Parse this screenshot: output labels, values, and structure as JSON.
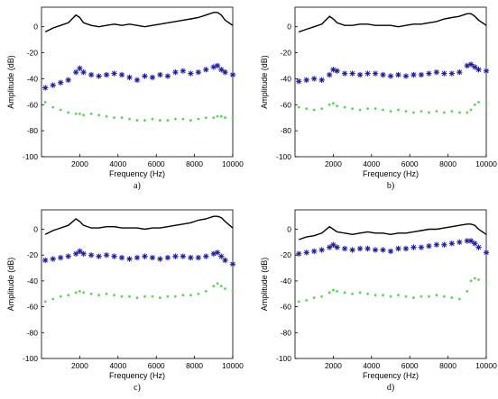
{
  "chart_data": [
    {
      "type": "line",
      "panel_label": "a)",
      "xlabel": "Frequency (Hz)",
      "ylabel": "Amplitude (dB)",
      "xlim": [
        0,
        10000
      ],
      "ylim": [
        -100,
        15
      ],
      "xticks": [
        2000,
        4000,
        6000,
        8000,
        10000
      ],
      "yticks": [
        0,
        -20,
        -40,
        -60,
        -80,
        -100
      ],
      "series": [
        {
          "style": "line",
          "color": "#000000",
          "x": [
            200,
            600,
            1000,
            1400,
            1800,
            2000,
            2200,
            2600,
            3000,
            3400,
            3800,
            4200,
            4600,
            5000,
            5400,
            5800,
            6200,
            6600,
            7000,
            7400,
            7800,
            8200,
            8600,
            9000,
            9200,
            9400,
            9600,
            10000
          ],
          "y": [
            -4,
            -1,
            1,
            3,
            9,
            7,
            3,
            1,
            0,
            1,
            2,
            1,
            2,
            1,
            0,
            1,
            2,
            3,
            4,
            5,
            6,
            7,
            9,
            11,
            11,
            9,
            5,
            1
          ]
        },
        {
          "style": "stars",
          "color": "#1a1a99",
          "x": [
            200,
            600,
            1000,
            1400,
            1800,
            2000,
            2200,
            2600,
            3000,
            3400,
            3800,
            4200,
            4600,
            5000,
            5400,
            5800,
            6200,
            6600,
            7000,
            7400,
            7800,
            8200,
            8600,
            9000,
            9200,
            9400,
            9600,
            10000
          ],
          "y": [
            -47,
            -45,
            -43,
            -41,
            -35,
            -32,
            -35,
            -37,
            -38,
            -37,
            -36,
            -37,
            -39,
            -41,
            -38,
            -39,
            -37,
            -38,
            -35,
            -34,
            -36,
            -35,
            -33,
            -31,
            -30,
            -33,
            -35,
            -37
          ]
        },
        {
          "style": "dots",
          "color": "#55d655",
          "x": [
            200,
            600,
            1000,
            1400,
            1800,
            2000,
            2200,
            2600,
            3000,
            3400,
            3800,
            4200,
            4600,
            5000,
            5400,
            5800,
            6200,
            6600,
            7000,
            7400,
            7800,
            8200,
            8600,
            9000,
            9200,
            9400,
            9600,
            10000
          ],
          "y": [
            -58,
            -62,
            -64,
            -66,
            -67,
            -67,
            -68,
            -67,
            -68,
            -69,
            -70,
            -70,
            -71,
            -72,
            -72,
            -71,
            -72,
            -72,
            -71,
            -71,
            -72,
            -71,
            -70,
            -70,
            -69,
            -69,
            -70,
            -70
          ]
        }
      ]
    },
    {
      "type": "line",
      "panel_label": "b)",
      "xlabel": "Frequency (Hz)",
      "ylabel": "Amplitude (dB)",
      "xlim": [
        0,
        10000
      ],
      "ylim": [
        -100,
        15
      ],
      "xticks": [
        2000,
        4000,
        6000,
        8000,
        10000
      ],
      "yticks": [
        0,
        -20,
        -40,
        -60,
        -80,
        -100
      ],
      "series": [
        {
          "style": "line",
          "color": "#000000",
          "x": [
            200,
            600,
            1000,
            1400,
            1800,
            2000,
            2200,
            2600,
            3000,
            3400,
            3800,
            4200,
            4600,
            5000,
            5400,
            5800,
            6200,
            6600,
            7000,
            7400,
            7800,
            8200,
            8600,
            9000,
            9200,
            9400,
            9600,
            10000
          ],
          "y": [
            -4,
            -2,
            0,
            2,
            8,
            6,
            3,
            1,
            1,
            2,
            2,
            1,
            1,
            1,
            0,
            1,
            2,
            2,
            3,
            4,
            6,
            7,
            8,
            10,
            10,
            8,
            5,
            1
          ]
        },
        {
          "style": "stars",
          "color": "#1a1a99",
          "x": [
            200,
            600,
            1000,
            1400,
            1800,
            2000,
            2200,
            2600,
            3000,
            3400,
            3800,
            4200,
            4600,
            5000,
            5400,
            5800,
            6200,
            6600,
            7000,
            7400,
            7800,
            8200,
            8600,
            9000,
            9200,
            9400,
            9600,
            10000
          ],
          "y": [
            -42,
            -41,
            -40,
            -41,
            -37,
            -33,
            -34,
            -36,
            -36,
            -37,
            -36,
            -36,
            -37,
            -38,
            -37,
            -38,
            -37,
            -37,
            -36,
            -35,
            -36,
            -36,
            -35,
            -30,
            -29,
            -31,
            -33,
            -34
          ]
        },
        {
          "style": "dots",
          "color": "#55d655",
          "x": [
            200,
            600,
            1000,
            1400,
            1800,
            2000,
            2200,
            2600,
            3000,
            3400,
            3800,
            4200,
            4600,
            5000,
            5400,
            5800,
            6200,
            6600,
            7000,
            7400,
            7800,
            8200,
            8600,
            9000,
            9200,
            9400,
            9600,
            10000
          ],
          "y": [
            -62,
            -63,
            -64,
            -63,
            -60,
            -59,
            -61,
            -62,
            -63,
            -64,
            -63,
            -63,
            -64,
            -65,
            -64,
            -65,
            -66,
            -65,
            -66,
            -65,
            -66,
            -65,
            -66,
            -66,
            -64,
            -60,
            -58,
            -59
          ]
        }
      ]
    },
    {
      "type": "line",
      "panel_label": "c)",
      "xlabel": "Frequency (Hz)",
      "ylabel": "Amplitude (dB)",
      "xlim": [
        0,
        10000
      ],
      "ylim": [
        -100,
        15
      ],
      "xticks": [
        2000,
        4000,
        6000,
        8000,
        10000
      ],
      "yticks": [
        0,
        -20,
        -40,
        -60,
        -80,
        -100
      ],
      "series": [
        {
          "style": "line",
          "color": "#000000",
          "x": [
            200,
            600,
            1000,
            1400,
            1800,
            2000,
            2200,
            2600,
            3000,
            3400,
            3800,
            4200,
            4600,
            5000,
            5400,
            5800,
            6200,
            6600,
            7000,
            7400,
            7800,
            8200,
            8600,
            9000,
            9200,
            9400,
            9600,
            10000
          ],
          "y": [
            -4,
            -1,
            1,
            3,
            8,
            6,
            3,
            1,
            1,
            2,
            2,
            1,
            1,
            1,
            0,
            1,
            1,
            2,
            3,
            4,
            5,
            7,
            8,
            10,
            10,
            9,
            6,
            1
          ]
        },
        {
          "style": "stars",
          "color": "#1a1a99",
          "x": [
            200,
            600,
            1000,
            1400,
            1800,
            2000,
            2200,
            2600,
            3000,
            3400,
            3800,
            4200,
            4600,
            5000,
            5400,
            5800,
            6200,
            6600,
            7000,
            7400,
            7800,
            8200,
            8600,
            9000,
            9200,
            9400,
            9600,
            10000
          ],
          "y": [
            -24,
            -23,
            -22,
            -21,
            -19,
            -17,
            -19,
            -20,
            -21,
            -20,
            -21,
            -22,
            -23,
            -22,
            -21,
            -22,
            -23,
            -22,
            -21,
            -21,
            -22,
            -22,
            -21,
            -19,
            -18,
            -21,
            -24,
            -27
          ]
        },
        {
          "style": "dots",
          "color": "#55d655",
          "x": [
            200,
            600,
            1000,
            1400,
            1800,
            2000,
            2200,
            2600,
            3000,
            3400,
            3800,
            4200,
            4600,
            5000,
            5400,
            5800,
            6200,
            6600,
            7000,
            7400,
            7800,
            8200,
            8600,
            9000,
            9200,
            9400,
            9600,
            10000
          ],
          "y": [
            -56,
            -54,
            -52,
            -51,
            -49,
            -48,
            -49,
            -50,
            -51,
            -50,
            -51,
            -52,
            -52,
            -53,
            -52,
            -52,
            -53,
            -52,
            -52,
            -51,
            -51,
            -50,
            -48,
            -44,
            -42,
            -44,
            -46,
            -48
          ]
        }
      ]
    },
    {
      "type": "line",
      "panel_label": "d)",
      "xlabel": "Frequency (Hz)",
      "ylabel": "Amplitude (dB)",
      "xlim": [
        0,
        10000
      ],
      "ylim": [
        -100,
        15
      ],
      "xticks": [
        2000,
        4000,
        6000,
        8000,
        10000
      ],
      "yticks": [
        0,
        -20,
        -40,
        -60,
        -80,
        -100
      ],
      "series": [
        {
          "style": "line",
          "color": "#000000",
          "x": [
            200,
            600,
            1000,
            1400,
            1800,
            2000,
            2200,
            2600,
            3000,
            3400,
            3800,
            4200,
            4600,
            5000,
            5400,
            5800,
            6200,
            6600,
            7000,
            7400,
            7800,
            8200,
            8600,
            9000,
            9200,
            9400,
            9600,
            10000
          ],
          "y": [
            -8,
            -6,
            -5,
            -3,
            2,
            0,
            -2,
            -3,
            -4,
            -3,
            -2,
            -3,
            -3,
            -4,
            -3,
            -3,
            -2,
            -1,
            0,
            0,
            1,
            2,
            3,
            4,
            4,
            3,
            0,
            -4
          ]
        },
        {
          "style": "stars",
          "color": "#1a1a99",
          "x": [
            200,
            600,
            1000,
            1400,
            1800,
            2000,
            2200,
            2600,
            3000,
            3400,
            3800,
            4200,
            4600,
            5000,
            5400,
            5800,
            6200,
            6600,
            7000,
            7400,
            7800,
            8200,
            8600,
            9000,
            9200,
            9400,
            9600,
            10000
          ],
          "y": [
            -19,
            -18,
            -17,
            -16,
            -14,
            -12,
            -14,
            -15,
            -16,
            -15,
            -15,
            -16,
            -16,
            -17,
            -15,
            -15,
            -14,
            -14,
            -13,
            -12,
            -12,
            -11,
            -10,
            -9,
            -9,
            -11,
            -14,
            -18
          ]
        },
        {
          "style": "dots",
          "color": "#55d655",
          "x": [
            200,
            600,
            1000,
            1400,
            1800,
            2000,
            2200,
            2600,
            3000,
            3400,
            3800,
            4200,
            4600,
            5000,
            5400,
            5800,
            6200,
            6600,
            7000,
            7400,
            7800,
            8200,
            8600,
            9000,
            9200,
            9400,
            9600,
            10000
          ],
          "y": [
            -56,
            -55,
            -53,
            -52,
            -49,
            -47,
            -48,
            -49,
            -50,
            -49,
            -50,
            -51,
            -51,
            -52,
            -51,
            -52,
            -53,
            -52,
            -52,
            -51,
            -52,
            -53,
            -54,
            -48,
            -40,
            -38,
            -39,
            -42
          ]
        }
      ]
    }
  ]
}
